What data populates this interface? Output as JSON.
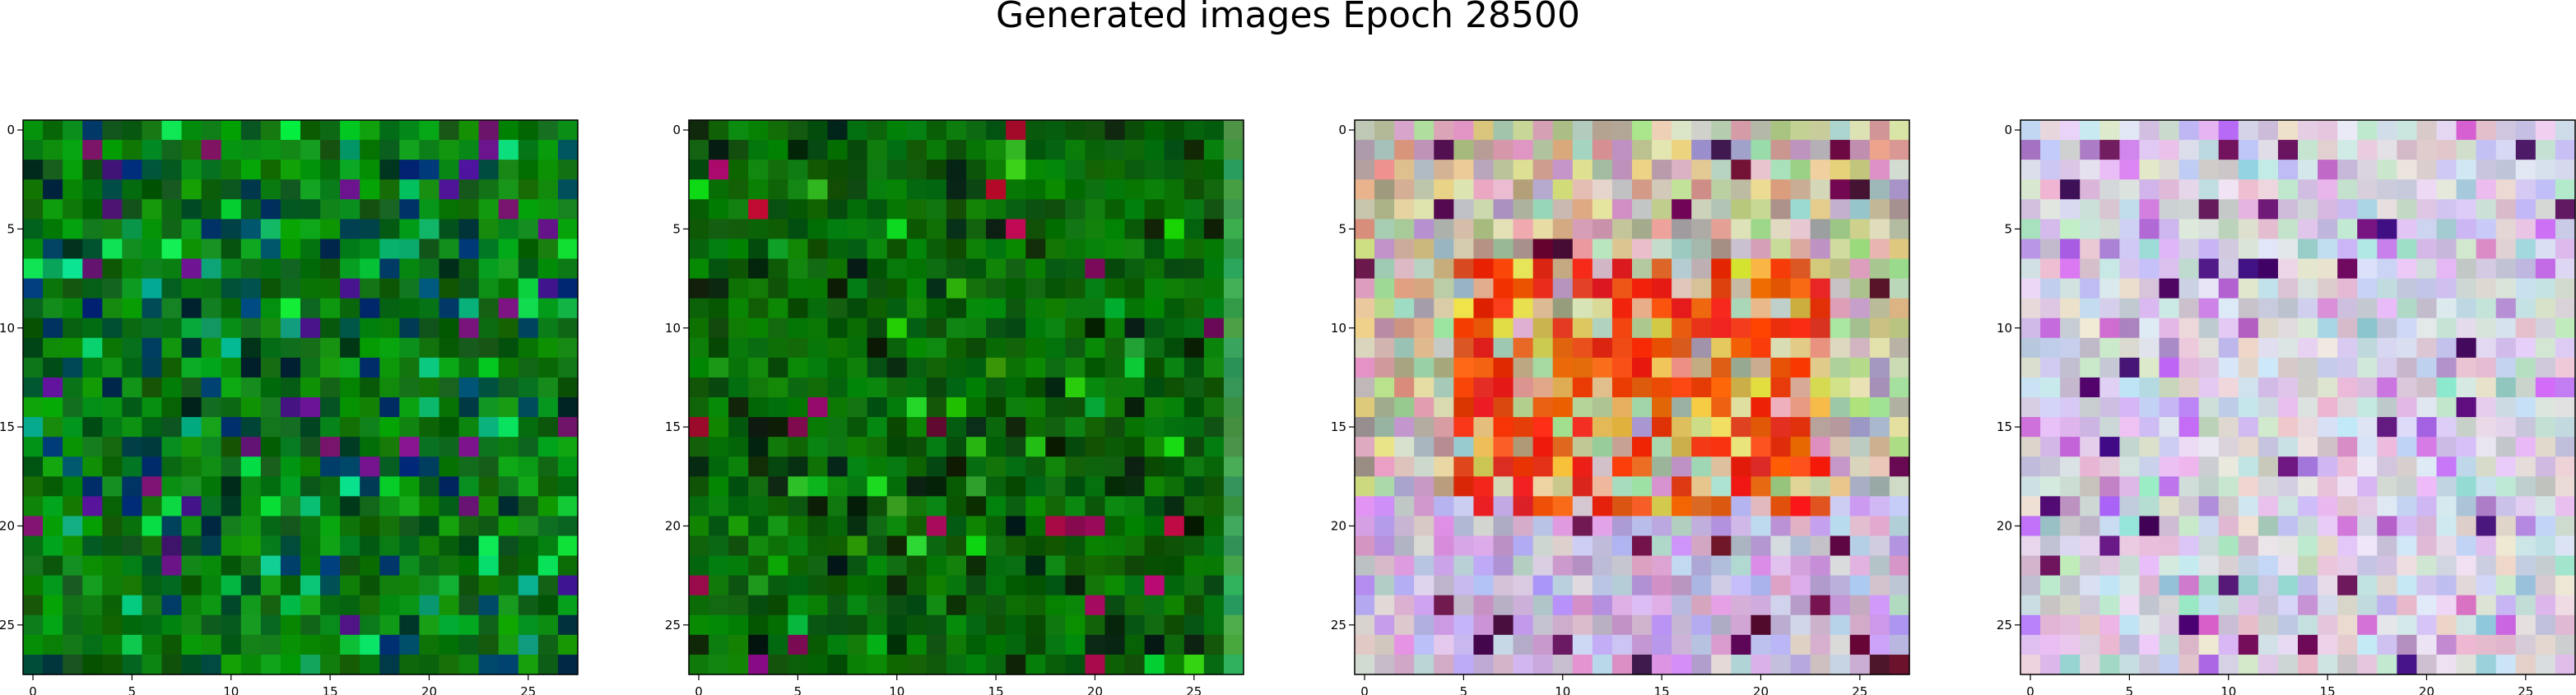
{
  "figure": {
    "title": "Generated images Epoch 28500",
    "background": "#ffffff",
    "axes_color": "#000000"
  },
  "chart_data": [
    {
      "type": "heatmap",
      "name": "image-0",
      "palette": "green",
      "grid": [
        28,
        28
      ],
      "xlim": [
        -0.5,
        27.5
      ],
      "ylim": [
        27.5,
        -0.5
      ],
      "xticks": [
        0,
        5,
        10,
        15,
        20,
        25
      ],
      "yticks": [
        0,
        5,
        10,
        15,
        20,
        25
      ],
      "xtick_labels": [
        "0",
        "5",
        "10",
        "15",
        "20",
        "25"
      ],
      "ytick_labels": [
        "0",
        "5",
        "10",
        "15",
        "20",
        "25"
      ],
      "grid_on": false
    },
    {
      "type": "heatmap",
      "name": "image-1",
      "palette": "darkgreen",
      "grid": [
        28,
        28
      ],
      "xlim": [
        -0.5,
        27.5
      ],
      "ylim": [
        27.5,
        -0.5
      ],
      "xticks": [
        0,
        5,
        10,
        15,
        20,
        25
      ],
      "yticks": [
        0,
        5,
        10,
        15,
        20,
        25
      ],
      "xtick_labels": [
        "0",
        "5",
        "10",
        "15",
        "20",
        "25"
      ],
      "ytick_labels": [
        "0",
        "5",
        "10",
        "15",
        "20",
        "25"
      ],
      "grid_on": false
    },
    {
      "type": "heatmap",
      "name": "image-2",
      "palette": "red-pastel",
      "grid": [
        28,
        28
      ],
      "xlim": [
        -0.5,
        27.5
      ],
      "ylim": [
        27.5,
        -0.5
      ],
      "xticks": [
        0,
        5,
        10,
        15,
        20,
        25
      ],
      "yticks": [
        0,
        5,
        10,
        15,
        20,
        25
      ],
      "xtick_labels": [
        "0",
        "5",
        "10",
        "15",
        "20",
        "25"
      ],
      "ytick_labels": [
        "0",
        "5",
        "10",
        "15",
        "20",
        "25"
      ],
      "grid_on": false
    },
    {
      "type": "heatmap",
      "name": "image-3",
      "palette": "lavender-pastel",
      "grid": [
        28,
        28
      ],
      "xlim": [
        -0.5,
        27.5
      ],
      "ylim": [
        27.5,
        -0.5
      ],
      "xticks": [
        0,
        5,
        10,
        15,
        20,
        25
      ],
      "yticks": [
        0,
        5,
        10,
        15,
        20,
        25
      ],
      "xtick_labels": [
        "0",
        "5",
        "10",
        "15",
        "20",
        "25"
      ],
      "ytick_labels": [
        "0",
        "5",
        "10",
        "15",
        "20",
        "25"
      ],
      "grid_on": false
    }
  ]
}
